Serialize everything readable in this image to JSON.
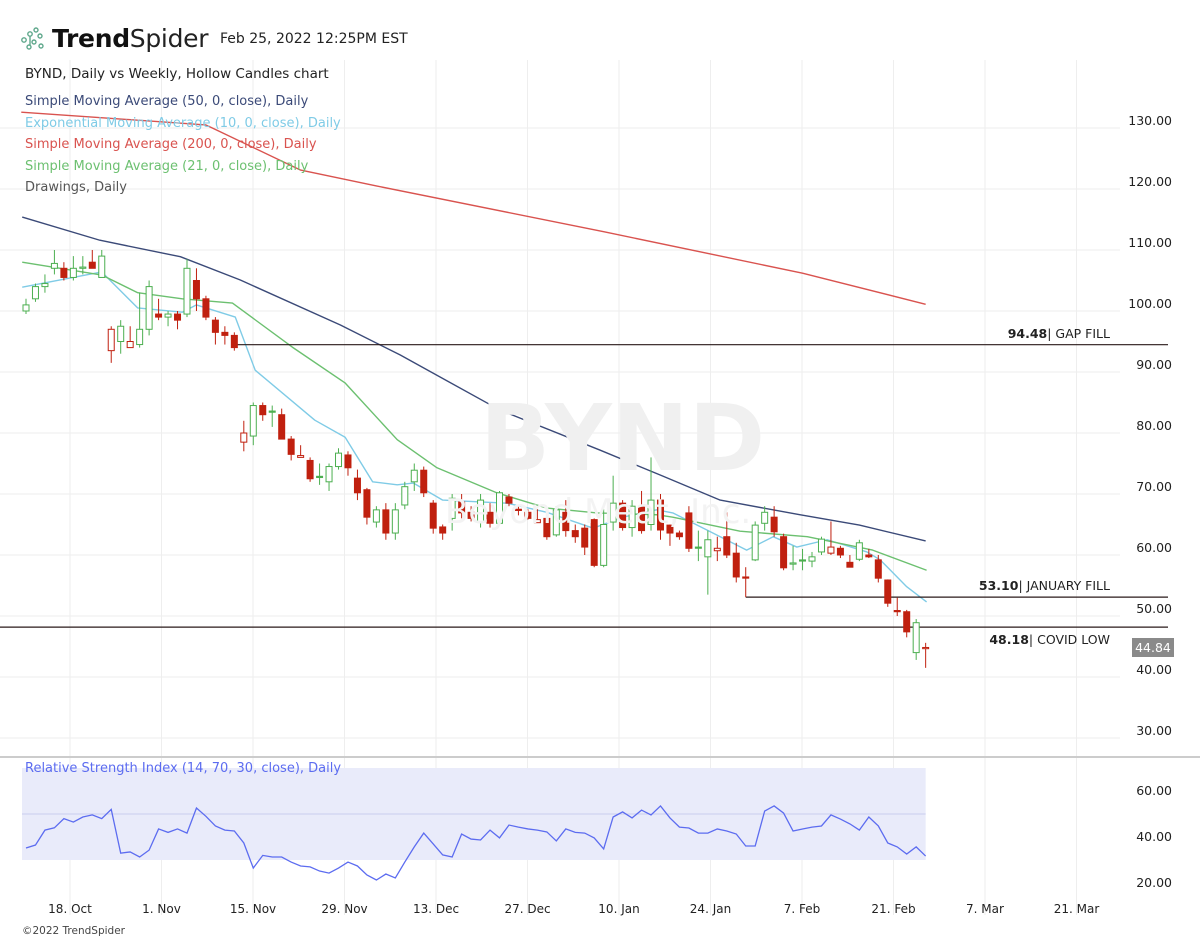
{
  "header": {
    "brand_bold": "Trend",
    "brand_light": "Spider",
    "timestamp": "Feb 25, 2022 12:25PM EST",
    "chart_title": "BYND, Daily vs Weekly, Hollow Candles chart"
  },
  "legend": [
    {
      "label": "Simple Moving Average (50, 0, close), Daily",
      "color": "#3b4a78"
    },
    {
      "label": "Exponential Moving Average (10, 0, close), Daily",
      "color": "#7fcbe6"
    },
    {
      "label": "Simple Moving Average (200, 0, close), Daily",
      "color": "#d9534f"
    },
    {
      "label": "Simple Moving Average (21, 0, close), Daily",
      "color": "#6cc070"
    },
    {
      "label": "Drawings, Daily",
      "color": "#555555"
    }
  ],
  "watermark": {
    "symbol": "BYND",
    "company": "Beyond Meat, Inc."
  },
  "levels": [
    {
      "value": "94.48",
      "label": "| GAP FILL",
      "price": 94.48,
      "start_index": 22
    },
    {
      "value": "53.10",
      "label": "| JANUARY FILL",
      "price": 53.1,
      "start_index": 76
    },
    {
      "value": "48.18",
      "label": "| COVID LOW",
      "price": 48.18,
      "start_index": -3
    }
  ],
  "last_price": "44.84",
  "rsi_label": "Relative Strength Index (14, 70, 30, close), Daily",
  "footer": "©2022 TrendSpider",
  "colors": {
    "up": "#4caf50",
    "down": "#c0200f",
    "rsi": "#5c6cf0",
    "rsi_band": "#e9ebfa"
  },
  "chart_data": [
    {
      "type": "candlestick",
      "title": "BYND, Daily vs Weekly, Hollow Candles chart",
      "ylim": [
        25,
        135
      ],
      "y_ticks": [
        "130.00",
        "120.00",
        "110.00",
        "100.00",
        "90.00",
        "80.00",
        "70.00",
        "60.00",
        "50.00",
        "40.00",
        "30.00"
      ],
      "x_ticks": [
        "18. Oct",
        "1. Nov",
        "15. Nov",
        "29. Nov",
        "13. Dec",
        "27. Dec",
        "10. Jan",
        "24. Jan",
        "7. Feb",
        "21. Feb",
        "7. Mar",
        "21. Mar"
      ],
      "ohlc": [
        [
          100,
          102,
          99.5,
          101
        ],
        [
          102,
          104.5,
          101.5,
          104
        ],
        [
          104,
          106,
          103,
          104.5
        ],
        [
          107,
          110,
          106,
          107.8
        ],
        [
          107,
          108,
          105,
          105.5
        ],
        [
          105.5,
          109,
          105,
          107
        ],
        [
          107,
          109,
          106,
          107.2
        ],
        [
          108,
          110,
          107,
          107
        ],
        [
          105.5,
          110,
          105.5,
          109
        ],
        [
          93.5,
          97.5,
          91.5,
          97
        ],
        [
          95,
          98.5,
          93,
          97.5
        ],
        [
          94,
          97.5,
          94,
          95
        ],
        [
          94.5,
          103,
          94,
          97
        ],
        [
          97,
          105,
          96,
          104
        ],
        [
          99.5,
          102,
          98.5,
          99
        ],
        [
          99,
          100,
          97.5,
          99.5
        ],
        [
          99.5,
          100,
          97,
          98.5
        ],
        [
          99.5,
          108.5,
          99,
          107
        ],
        [
          105,
          107,
          100,
          102
        ],
        [
          102,
          102.5,
          98.5,
          99
        ],
        [
          98.5,
          99,
          94.5,
          96.5
        ],
        [
          96.5,
          97.5,
          94.5,
          96
        ],
        [
          96,
          96.5,
          93.5,
          94
        ],
        [
          78.5,
          82,
          77,
          80
        ],
        [
          79.5,
          85,
          78,
          84.5
        ],
        [
          84.5,
          85,
          82,
          83
        ],
        [
          83.6,
          84.5,
          81,
          83.4
        ],
        [
          83,
          84,
          79,
          79
        ],
        [
          79,
          79.5,
          75.5,
          76.5
        ],
        [
          76,
          78,
          76,
          76.3
        ],
        [
          75.5,
          76,
          72,
          72.5
        ],
        [
          72.9,
          75,
          71.5,
          72.7
        ],
        [
          72,
          75,
          70.5,
          74.5
        ],
        [
          74.5,
          77.5,
          74,
          76.7
        ],
        [
          76.4,
          77,
          73,
          74.3
        ],
        [
          72.6,
          74,
          69,
          70.2
        ],
        [
          70.7,
          71,
          65,
          66.2
        ],
        [
          65.4,
          68,
          64.5,
          67.4
        ],
        [
          67.4,
          68.5,
          62.5,
          63.6
        ],
        [
          63.6,
          68.5,
          62.5,
          67.4
        ],
        [
          68.2,
          72,
          67.5,
          71.2
        ],
        [
          72,
          75,
          70.5,
          73.9
        ],
        [
          73.9,
          74.5,
          69.5,
          70.2
        ],
        [
          68.5,
          69,
          63.5,
          64.4
        ],
        [
          64.6,
          65,
          62.5,
          63.6
        ],
        [
          66,
          70,
          64,
          69.3
        ],
        [
          68.7,
          70,
          66,
          66.9
        ],
        [
          67,
          68,
          65.5,
          66
        ],
        [
          65.4,
          70,
          64.5,
          69
        ],
        [
          67,
          68.5,
          64.5,
          65.2
        ],
        [
          65.2,
          70.5,
          65,
          70.2
        ],
        [
          69.5,
          70,
          68,
          68.5
        ],
        [
          67.5,
          68,
          66.5,
          67.3
        ],
        [
          67,
          67.5,
          65.8,
          66
        ],
        [
          65.3,
          67.5,
          65.3,
          65.8
        ],
        [
          66,
          66.5,
          62.5,
          63
        ],
        [
          63.3,
          68,
          63,
          67.4
        ],
        [
          67,
          69,
          63,
          64
        ],
        [
          64,
          65,
          62,
          63
        ],
        [
          64.4,
          65,
          60,
          61.3
        ],
        [
          65.8,
          66,
          58,
          58.3
        ],
        [
          58.3,
          67.5,
          58,
          65
        ],
        [
          65.4,
          73,
          64,
          68.5
        ],
        [
          68.5,
          69,
          64,
          64.5
        ],
        [
          64.5,
          69,
          63,
          68
        ],
        [
          68,
          70.5,
          63.5,
          64
        ],
        [
          65,
          76,
          64,
          69
        ],
        [
          69,
          70,
          62.5,
          64.1
        ],
        [
          64.9,
          65,
          61.5,
          63.6
        ],
        [
          63.6,
          64,
          62.5,
          63
        ],
        [
          66.9,
          68,
          60.5,
          61.1
        ],
        [
          61.3,
          64,
          59,
          61.3
        ],
        [
          59.7,
          64,
          53.5,
          62.5
        ],
        [
          60.7,
          63,
          59,
          61.1
        ],
        [
          63,
          67,
          59.5,
          60
        ],
        [
          60.3,
          62,
          55.5,
          56.4
        ],
        [
          56.4,
          58,
          53.1,
          56.3
        ],
        [
          59.2,
          65.5,
          59,
          64.9
        ],
        [
          65.2,
          68,
          64,
          67
        ],
        [
          66.2,
          68,
          63,
          63.8
        ],
        [
          63,
          63.5,
          57.5,
          57.9
        ],
        [
          58.6,
          61.5,
          57.5,
          58.7
        ],
        [
          59.2,
          61,
          57.5,
          59.2
        ],
        [
          59,
          60.5,
          58,
          59.7
        ],
        [
          60.5,
          63,
          60,
          62.6
        ],
        [
          60.3,
          65.5,
          60,
          61.3
        ],
        [
          61.1,
          61.5,
          59.5,
          60
        ],
        [
          58.8,
          60,
          58,
          58
        ],
        [
          59.3,
          62.5,
          59,
          62
        ],
        [
          60,
          61,
          59.5,
          59.7
        ],
        [
          59.2,
          60,
          55.5,
          56.2
        ],
        [
          55.9,
          56,
          51.5,
          52.1
        ],
        [
          50.9,
          53,
          50,
          50.7
        ],
        [
          50.7,
          51,
          46.5,
          47.4
        ],
        [
          44,
          49.5,
          42.8,
          48.9
        ],
        [
          44.8,
          45.6,
          41.5,
          44.84
        ]
      ],
      "series": [
        {
          "name": "SMA 50",
          "color": "#3b4a78",
          "points": [
            [
              -0.4,
              115.4
            ],
            [
              7.8,
              111.6
            ],
            [
              16.3,
              108.9
            ],
            [
              22.6,
              105.1
            ],
            [
              33.2,
              97.7
            ],
            [
              39.5,
              92.8
            ],
            [
              50,
              83.8
            ],
            [
              60.6,
              77.2
            ],
            [
              67,
              73.1
            ],
            [
              73.3,
              69
            ],
            [
              81.7,
              66.6
            ],
            [
              88,
              64.9
            ],
            [
              95,
              62.3
            ]
          ]
        },
        {
          "name": "EMA 10",
          "color": "#7fcbe6",
          "points": [
            [
              -0.4,
              103.9
            ],
            [
              8,
              106.4
            ],
            [
              11.8,
              100.5
            ],
            [
              16.5,
              99.8
            ],
            [
              18,
              101
            ],
            [
              22.1,
              99
            ],
            [
              24.2,
              90.3
            ],
            [
              30.5,
              82.1
            ],
            [
              33.7,
              79.3
            ],
            [
              36.6,
              72
            ],
            [
              39.2,
              71.5
            ],
            [
              40.9,
              71.8
            ],
            [
              44,
              69
            ],
            [
              48,
              68.7
            ],
            [
              50.8,
              68.5
            ],
            [
              55,
              67
            ],
            [
              59.9,
              64.4
            ],
            [
              63,
              66.2
            ],
            [
              66.6,
              67.4
            ],
            [
              68.3,
              66.9
            ],
            [
              71.9,
              64.1
            ],
            [
              76.1,
              60.8
            ],
            [
              78.9,
              63
            ],
            [
              81.4,
              61.3
            ],
            [
              84.6,
              62.5
            ],
            [
              88.8,
              60.5
            ],
            [
              90.2,
              59.2
            ],
            [
              93,
              54.8
            ],
            [
              95.1,
              52.3
            ]
          ]
        },
        {
          "name": "SMA 200",
          "color": "#d9534f",
          "points": [
            [
              -0.5,
              132.6
            ],
            [
              19,
              130.5
            ],
            [
              29,
              123.1
            ],
            [
              37,
              120.5
            ],
            [
              61,
              113
            ],
            [
              82,
              106.2
            ],
            [
              95,
              101.1
            ]
          ]
        },
        {
          "name": "SMA 21",
          "color": "#6cc070",
          "points": [
            [
              -0.4,
              108
            ],
            [
              8,
              105.9
            ],
            [
              11.8,
              103
            ],
            [
              16.5,
              102
            ],
            [
              21.8,
              101.3
            ],
            [
              28.1,
              94.1
            ],
            [
              33.7,
              88.2
            ],
            [
              39.2,
              78.9
            ],
            [
              43.4,
              74.3
            ],
            [
              49.7,
              70.2
            ],
            [
              55,
              67.7
            ],
            [
              60.3,
              66.9
            ],
            [
              66.6,
              66.6
            ],
            [
              68.3,
              66.2
            ],
            [
              75.4,
              63.9
            ],
            [
              82.5,
              63
            ],
            [
              89.4,
              60.8
            ],
            [
              95.1,
              57.5
            ]
          ]
        }
      ]
    },
    {
      "type": "line",
      "title": "Relative Strength Index (14, 70, 30, close), Daily",
      "ylim": [
        18,
        72
      ],
      "band": [
        30,
        70
      ],
      "y_ticks": [
        "60.00",
        "40.00",
        "20.00"
      ],
      "values": [
        35.2,
        36.5,
        43,
        44,
        48,
        46.5,
        48.7,
        49.6,
        48,
        52,
        33,
        33.5,
        31.3,
        34.3,
        43.5,
        42,
        43.5,
        41.7,
        52.6,
        49,
        44.8,
        43,
        42.6,
        37.4,
        26.5,
        32,
        31.3,
        31.3,
        29.1,
        27.4,
        27,
        25.2,
        24.3,
        26.5,
        29.1,
        27.4,
        23.5,
        21.3,
        23.9,
        22.2,
        29.1,
        35.7,
        41.7,
        37,
        32.2,
        31.3,
        41.3,
        39.1,
        38.7,
        43,
        39.6,
        45.2,
        44.3,
        43.5,
        43,
        42.2,
        38.3,
        43.5,
        42,
        41.7,
        39.6,
        34.8,
        48.7,
        50.9,
        48.3,
        51.7,
        49.6,
        53.5,
        48.3,
        44.3,
        43.9,
        41.7,
        41.7,
        43.5,
        42.6,
        41.3,
        36.1,
        36.1,
        51.3,
        53.5,
        50.4,
        42.6,
        43.5,
        44.3,
        44.8,
        49.6,
        47.8,
        45.7,
        43,
        48.7,
        44.8,
        37.4,
        35.7,
        32.6,
        35.7,
        31.7
      ]
    }
  ]
}
